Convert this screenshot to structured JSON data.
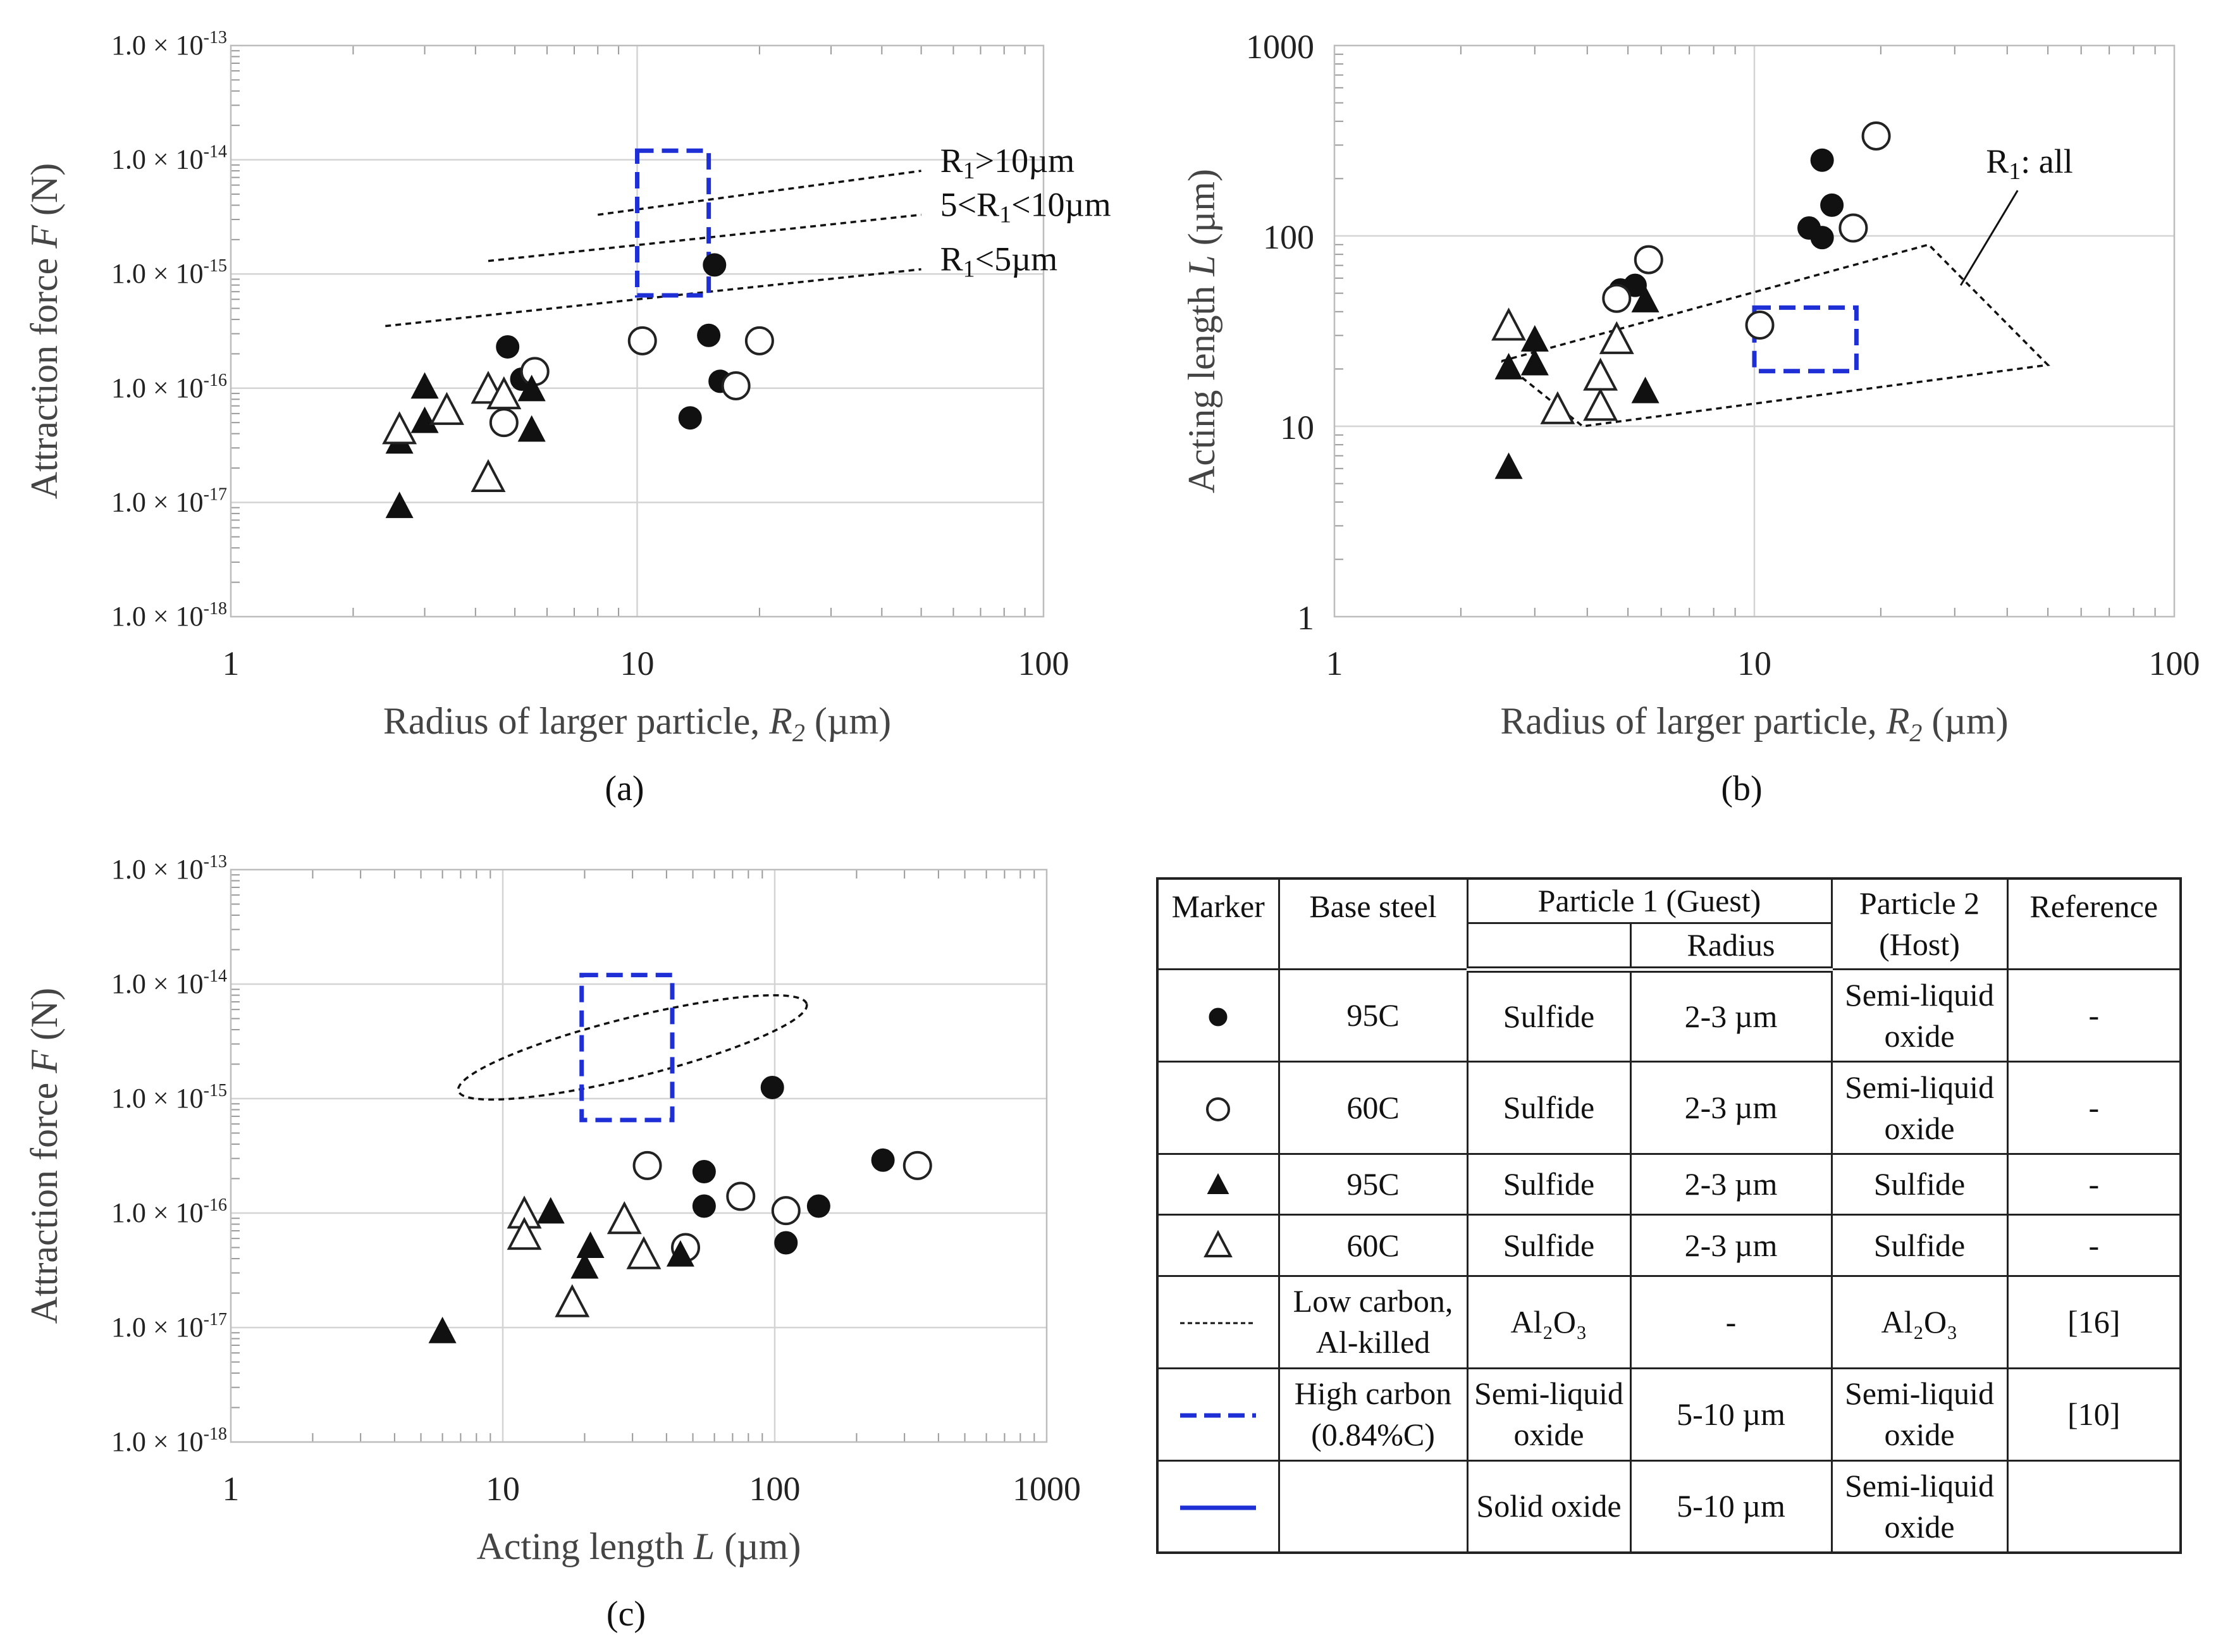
{
  "panels": [
    {
      "id": "a",
      "label": "(a)",
      "chart_data": {
        "type": "scatter",
        "xscale": "log",
        "yscale": "log",
        "xlim": [
          1,
          100
        ],
        "ylim": [
          1e-18,
          1e-13
        ],
        "xticks": [
          "1",
          "10",
          "100"
        ],
        "yticks_exp": [
          "-18",
          "-17",
          "-16",
          "-15",
          "-14",
          "-13"
        ],
        "ytick_prefix": "1.0 × 10",
        "xlabel_prefix": "Radius of larger particle, ",
        "xlabel_var": "R",
        "xlabel_sub": "2",
        "xlabel_suffix": " (µm)",
        "ylabel_prefix": "Attraction force ",
        "ylabel_var": "F",
        "ylabel_suffix": " (N)",
        "series": [
          {
            "name": "95C sulfide / semi-liquid oxide",
            "marker": "filled-circle",
            "points": [
              [
                4.8,
                2.3e-16
              ],
              [
                5.2,
                1.2e-16
              ],
              [
                15,
                2.9e-16
              ],
              [
                15.5,
                1.2e-15
              ],
              [
                13.5,
                5.5e-17
              ],
              [
                16,
                1.15e-16
              ]
            ]
          },
          {
            "name": "60C sulfide / semi-liquid oxide",
            "marker": "open-circle",
            "points": [
              [
                4.7,
                5e-17
              ],
              [
                5.6,
                1.4e-16
              ],
              [
                10.3,
                2.6e-16
              ],
              [
                17.5,
                1.05e-16
              ],
              [
                20,
                2.6e-16
              ]
            ]
          },
          {
            "name": "95C sulfide / sulfide",
            "marker": "filled-triangle",
            "points": [
              [
                2.6,
                9e-18
              ],
              [
                2.6,
                3.3e-17
              ],
              [
                3.0,
                1e-16
              ],
              [
                3.0,
                5e-17
              ],
              [
                5.5,
                9.5e-17
              ],
              [
                5.5,
                4.2e-17
              ]
            ]
          },
          {
            "name": "60C sulfide / sulfide",
            "marker": "open-triangle",
            "points": [
              [
                2.6,
                4.2e-17
              ],
              [
                3.4,
                6.2e-17
              ],
              [
                4.3,
                9.5e-17
              ],
              [
                4.7,
                8.5e-17
              ],
              [
                4.3,
                1.6e-17
              ]
            ]
          }
        ],
        "reference_lines": [
          {
            "label_prefix": "R",
            "label_sub": "1",
            "label_suffix": ">10µm",
            "from": [
              8,
              3.3e-15
            ],
            "to": [
              50,
              8e-15
            ]
          },
          {
            "label_prefix": "5<R",
            "label_sub": "1",
            "label_suffix": "<10µm",
            "from": [
              4.3,
              1.3e-15
            ],
            "to": [
              50,
              3.3e-15
            ]
          },
          {
            "label_prefix": "R",
            "label_sub": "1",
            "label_suffix": "<5µm",
            "from": [
              2.4,
              3.5e-16
            ],
            "to": [
              50,
              1.1e-15
            ]
          }
        ],
        "high_carbon_box": {
          "x": [
            10,
            15
          ],
          "y": [
            6.5e-16,
            1.2e-14
          ]
        }
      }
    },
    {
      "id": "b",
      "label": "(b)",
      "chart_data": {
        "type": "scatter",
        "xscale": "log",
        "yscale": "log",
        "xlim": [
          1,
          100
        ],
        "ylim": [
          1,
          1000
        ],
        "xticks": [
          "1",
          "10",
          "100"
        ],
        "yticks": [
          "1",
          "10",
          "100",
          "1000"
        ],
        "xlabel_prefix": "Radius of larger particle, ",
        "xlabel_var": "R",
        "xlabel_sub": "2",
        "xlabel_suffix": " (µm)",
        "ylabel_prefix": "Acting length ",
        "ylabel_var": "L",
        "ylabel_suffix": " (µm)",
        "series": [
          {
            "name": "95C sulfide / semi-liquid oxide",
            "marker": "filled-circle",
            "points": [
              [
                4.8,
                52
              ],
              [
                5.2,
                55
              ],
              [
                14.5,
                250
              ],
              [
                15.3,
                145
              ],
              [
                13.5,
                110
              ],
              [
                14.5,
                98
              ]
            ]
          },
          {
            "name": "60C sulfide / semi-liquid oxide",
            "marker": "open-circle",
            "points": [
              [
                4.7,
                47
              ],
              [
                5.6,
                75
              ],
              [
                10.3,
                34
              ],
              [
                17.2,
                110
              ],
              [
                19.5,
                335
              ]
            ]
          },
          {
            "name": "95C sulfide / sulfide",
            "marker": "filled-triangle",
            "points": [
              [
                2.6,
                6
              ],
              [
                2.6,
                20
              ],
              [
                3.0,
                28
              ],
              [
                3.0,
                21
              ],
              [
                5.5,
                45
              ],
              [
                5.5,
                15
              ]
            ]
          },
          {
            "name": "60C sulfide / sulfide",
            "marker": "open-triangle",
            "points": [
              [
                2.6,
                33
              ],
              [
                3.4,
                12
              ],
              [
                4.3,
                18
              ],
              [
                4.3,
                12.5
              ],
              [
                4.7,
                28
              ]
            ]
          }
        ],
        "reference_region": {
          "label_prefix": "R",
          "label_sub": "1",
          "label_suffix": ": all",
          "polygon": [
            [
              2.5,
              22
            ],
            [
              26,
              90
            ],
            [
              50,
              21
            ],
            [
              3.9,
              10
            ],
            [
              2.5,
              22
            ]
          ]
        },
        "high_carbon_box": {
          "x": [
            10,
            17.5
          ],
          "y": [
            19.5,
            42
          ]
        }
      }
    },
    {
      "id": "c",
      "label": "(c)",
      "chart_data": {
        "type": "scatter",
        "xscale": "log",
        "yscale": "log",
        "xlim": [
          1,
          1000
        ],
        "ylim": [
          1e-18,
          1e-13
        ],
        "xticks": [
          "1",
          "10",
          "100",
          "1000"
        ],
        "yticks_exp": [
          "-18",
          "-17",
          "-16",
          "-15",
          "-14",
          "-13"
        ],
        "ytick_prefix": "1.0 × 10",
        "xlabel_prefix": "Acting length ",
        "xlabel_var": "L",
        "xlabel_sub": "",
        "xlabel_suffix": " (µm)",
        "ylabel_prefix": "Attraction force ",
        "ylabel_var": "F",
        "ylabel_suffix": " (N)",
        "series": [
          {
            "name": "95C sulfide / semi-liquid oxide",
            "marker": "filled-circle",
            "points": [
              [
                55,
                2.3e-16
              ],
              [
                55,
                1.15e-16
              ],
              [
                98,
                1.25e-15
              ],
              [
                110,
                5.5e-17
              ],
              [
                145,
                1.15e-16
              ],
              [
                250,
                2.9e-16
              ]
            ]
          },
          {
            "name": "60C sulfide / semi-liquid oxide",
            "marker": "open-circle",
            "points": [
              [
                34,
                2.6e-16
              ],
              [
                47,
                5e-17
              ],
              [
                75,
                1.4e-16
              ],
              [
                110,
                1.05e-16
              ],
              [
                335,
                2.6e-16
              ]
            ]
          },
          {
            "name": "95C sulfide / sulfide",
            "marker": "filled-triangle",
            "points": [
              [
                6,
                9e-18
              ],
              [
                15,
                1e-16
              ],
              [
                20,
                3.3e-17
              ],
              [
                21,
                5e-17
              ],
              [
                45,
                4.2e-17
              ]
            ]
          },
          {
            "name": "60C sulfide / sulfide",
            "marker": "open-triangle",
            "points": [
              [
                12,
                9.5e-17
              ],
              [
                12,
                6.2e-17
              ],
              [
                18,
                1.6e-17
              ],
              [
                28,
                8.5e-17
              ],
              [
                33,
                4.2e-17
              ]
            ]
          }
        ],
        "reference_ellipse": {
          "center": [
            30,
            2.8e-15
          ],
          "semi_axis_decades": [
            0.66,
            0.26
          ],
          "rotation_deg": -14
        },
        "high_carbon_box": {
          "x": [
            19.5,
            42
          ],
          "y": [
            6.5e-16,
            1.2e-14
          ]
        }
      }
    }
  ],
  "legend_table": {
    "headers": {
      "marker": "Marker",
      "base_steel": "Base steel",
      "particle1": "Particle 1 (Guest)",
      "radius": "Radius",
      "particle2_line1": "Particle 2",
      "particle2_line2": "(Host)",
      "reference": "Reference"
    },
    "rows": [
      {
        "marker": "filled-circle",
        "base_steel": "95C",
        "particle1": "Sulfide",
        "radius": "2-3 µm",
        "particle2": "Semi-liquid oxide",
        "reference": "-"
      },
      {
        "marker": "open-circle",
        "base_steel": "60C",
        "particle1": "Sulfide",
        "radius": "2-3 µm",
        "particle2": "Semi-liquid oxide",
        "reference": "-"
      },
      {
        "marker": "filled-triangle",
        "base_steel": "95C",
        "particle1": "Sulfide",
        "radius": "2-3 µm",
        "particle2": "Sulfide",
        "reference": "-"
      },
      {
        "marker": "open-triangle",
        "base_steel": "60C",
        "particle1": "Sulfide",
        "radius": "2-3 µm",
        "particle2": "Sulfide",
        "reference": "-"
      },
      {
        "marker": "black-dotted-line",
        "base_steel": "Low carbon, Al-killed",
        "particle1": "Al₂O₃",
        "radius": "-",
        "particle2": "Al₂O₃",
        "reference": "[16]"
      },
      {
        "marker": "blue-dashed-line",
        "base_steel": "High carbon (0.84%C)",
        "particle1": "Semi-liquid oxide",
        "radius": "5-10 µm",
        "particle2": "Semi-liquid oxide",
        "reference": "[10]"
      },
      {
        "marker": "blue-solid-line",
        "base_steel": "",
        "particle1": "Solid oxide",
        "radius": "5-10 µm",
        "particle2": "Semi-liquid oxide",
        "reference": ""
      }
    ]
  }
}
